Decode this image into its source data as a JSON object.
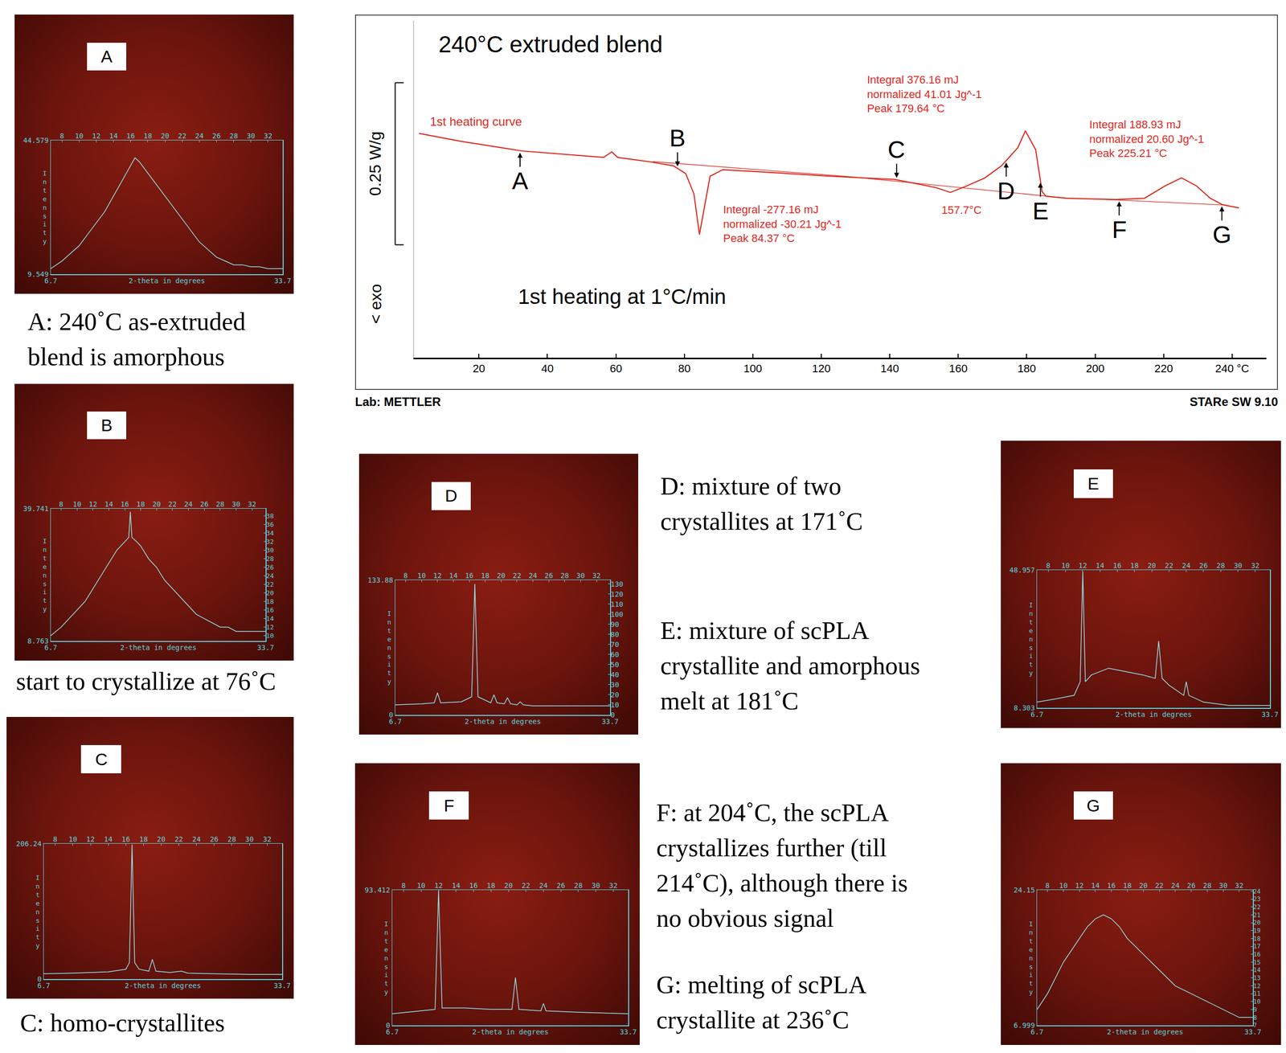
{
  "chart_data": [
    {
      "type": "line",
      "title": "240°C extruded blend",
      "subtitle": "1st heating at 1°C/min",
      "ylabel": "< exo",
      "series": [
        {
          "name": "1st heating curve",
          "color": "#e0291f",
          "x": [
            2.5,
            14.5,
            32.5,
            48,
            56.4,
            58.8,
            60.5,
            69.6,
            76.8,
            80.4,
            82.8,
            84.4,
            85.9,
            87.5,
            91.2,
            107.9,
            122.3,
            141.4,
            153.4,
            157.7,
            162.5,
            167.8,
            172.6,
            177.4,
            179.6,
            182.6,
            184.5,
            185.7,
            191.7,
            206,
            214.4,
            220.4,
            225.2,
            229.6,
            233.6,
            237.2,
            242
          ],
          "values": [
            0.346,
            0.334,
            0.319,
            0.3125,
            0.309,
            0.3175,
            0.309,
            0.3025,
            0.296,
            0.284,
            0.2525,
            0.19,
            0.234,
            0.28,
            0.29,
            0.285,
            0.28,
            0.275,
            0.2625,
            0.255,
            0.265,
            0.2775,
            0.296,
            0.324,
            0.35,
            0.321,
            0.256,
            0.249,
            0.246,
            0.244,
            0.246,
            0.265,
            0.2775,
            0.265,
            0.246,
            0.236,
            0.231
          ]
        },
        {
          "color": "#e0291f",
          "x": [
            70.8,
            128.8
          ],
          "values": [
            0.3025,
            0.279
          ]
        },
        {
          "color": "#e0291f",
          "x": [
            128.8,
            193
          ],
          "values": [
            0.279,
            0.2455
          ]
        },
        {
          "color": "#e0291f",
          "x": [
            201,
            238.4
          ],
          "values": [
            0.2445,
            0.2355
          ]
        }
      ],
      "xlim": [
        1,
        250
      ],
      "xticks": [
        20,
        40,
        60,
        80,
        100,
        120,
        140,
        160,
        180,
        200,
        220,
        {
          "value": 240,
          "label": "240 °C"
        }
      ],
      "ylim": [
        0,
        0.52
      ],
      "tick_labels": "x",
      "scale_bar": {
        "value": 0.25,
        "label": "0.25 W/g"
      },
      "annotations": [
        {
          "text": [
            "Integral -277.16 mJ",
            "normalized -30.21 Jg^-1",
            "Peak 84.37 °C"
          ],
          "x": 91,
          "y": 0.24
        },
        {
          "text": [
            "Integral 376.16 mJ",
            "normalized 41.01 Jg^-1",
            "Peak 179.64 °C"
          ],
          "x": 133,
          "y": 0.44
        },
        {
          "text": [
            "Integral 188.93 mJ",
            "normalized 20.60 Jg^-1",
            "Peak 225.21 °C"
          ],
          "x": 198,
          "y": 0.371
        },
        {
          "text": "157.7°C",
          "x": 161,
          "y": 0.2275
        },
        {
          "text": "A",
          "x": 32,
          "arrow": "up"
        },
        {
          "text": "B",
          "x": 78,
          "arrow": "down"
        },
        {
          "text": "C",
          "x": 142,
          "arrow": "down"
        },
        {
          "text": "D",
          "x": 174,
          "arrow": "up"
        },
        {
          "text": "E",
          "x": 184,
          "arrow": "up"
        },
        {
          "text": "F",
          "x": 207,
          "arrow": "up"
        },
        {
          "text": "G",
          "x": 237,
          "arrow": "up"
        }
      ]
    },
    {
      "type": "line",
      "title": "A",
      "color": "#8fe3ea",
      "xlabel": "2-theta in degrees",
      "ylabel": "Intensity",
      "x": [
        6.7,
        8,
        9,
        10,
        11,
        12,
        13,
        14,
        15,
        16,
        16.5,
        17,
        18,
        19,
        20,
        21,
        22,
        23,
        24,
        25,
        26,
        27,
        28,
        29,
        30,
        31,
        32,
        33.7
      ],
      "values": [
        11,
        13,
        15,
        17,
        20,
        23,
        26,
        30,
        34,
        38,
        40,
        39,
        36,
        33,
        30,
        27,
        24,
        21,
        18,
        16,
        14,
        13,
        12,
        12,
        11.5,
        11.5,
        11,
        11
      ],
      "xlim": [
        6.7,
        33.7
      ],
      "xticks": [
        6.7,
        33.7
      ],
      "x2lim": [
        6.7,
        33.7
      ],
      "x2ticks": [
        8,
        10,
        12,
        14,
        16,
        18,
        20,
        22,
        24,
        26,
        28,
        30,
        32
      ],
      "ylim": [
        9.549,
        44.579
      ],
      "yticks": [
        9.549,
        44.579
      ]
    },
    {
      "type": "line",
      "title": "B",
      "color": "#8fe3ea",
      "xlabel": "2-theta in degrees",
      "ylabel": "Intensity",
      "x": [
        6.7,
        8,
        9,
        10,
        11,
        12,
        13,
        14,
        15,
        16,
        16.5,
        16.7,
        16.9,
        17.5,
        18,
        19,
        20,
        21,
        22,
        23,
        24,
        25,
        26,
        27,
        28,
        29,
        30,
        31,
        32,
        33.7
      ],
      "values": [
        10,
        12,
        14,
        16,
        18,
        21,
        24,
        27,
        30,
        32,
        33,
        39,
        33,
        32,
        31,
        28,
        26,
        23,
        21,
        19,
        17,
        15,
        14,
        13,
        12,
        12,
        11,
        11,
        11,
        11
      ],
      "xlim": [
        6.7,
        33.7
      ],
      "xticks": [
        6.7,
        33.7
      ],
      "x2lim": [
        6.7,
        33.7
      ],
      "x2ticks": [
        8,
        10,
        12,
        14,
        16,
        18,
        20,
        22,
        24,
        26,
        28,
        30,
        32
      ],
      "ylim": [
        8.763,
        39.741
      ],
      "yticks": [
        8.763,
        39.741
      ],
      "y2lim": [
        8.763,
        39.741
      ],
      "y2ticks": [
        10,
        12,
        14,
        16,
        18,
        20,
        22,
        24,
        26,
        28,
        30,
        32,
        34,
        36,
        38
      ]
    },
    {
      "type": "line",
      "title": "C",
      "color": "#8fe3ea",
      "xlabel": "2-theta in degrees",
      "ylabel": "Intensity",
      "x": [
        6.7,
        10,
        14,
        16,
        16.4,
        16.7,
        17,
        17.5,
        18.6,
        19.0,
        19.4,
        21,
        22.3,
        23,
        26,
        30,
        33.7
      ],
      "values": [
        8,
        9,
        11,
        15,
        25,
        205,
        25,
        15,
        12,
        30,
        12,
        10,
        12,
        9,
        8,
        7,
        7
      ],
      "xlim": [
        6.7,
        33.7
      ],
      "xticks": [
        6.7,
        33.7
      ],
      "x2lim": [
        6.7,
        33.7
      ],
      "x2ticks": [
        8,
        10,
        12,
        14,
        16,
        18,
        20,
        22,
        24,
        26,
        28,
        30,
        32
      ],
      "ylim": [
        0,
        206.24
      ],
      "yticks": [
        0,
        206.24
      ]
    },
    {
      "type": "line",
      "title": "D",
      "color": "#8fe3ea",
      "xlabel": "2-theta in degrees",
      "ylabel": "Intensity",
      "x": [
        6.7,
        10,
        11.6,
        12.0,
        12.4,
        15,
        16.3,
        16.7,
        17.1,
        18.7,
        19.1,
        19.5,
        20.4,
        20.8,
        21.2,
        22.0,
        22.4,
        22.8,
        24,
        33.7
      ],
      "values": [
        10,
        11,
        12,
        22,
        12,
        13,
        18,
        130,
        18,
        12,
        20,
        12,
        11,
        17,
        11,
        10,
        13,
        10,
        9,
        9
      ],
      "xlim": [
        6.7,
        33.7
      ],
      "xticks": [
        6.7,
        33.7
      ],
      "x2lim": [
        6.7,
        33.7
      ],
      "x2ticks": [
        8,
        10,
        12,
        14,
        16,
        18,
        20,
        22,
        24,
        26,
        28,
        30,
        32
      ],
      "ylim": [
        0,
        133.88
      ],
      "yticks": [
        0,
        133.88
      ],
      "y2lim": [
        0,
        133.88
      ],
      "y2ticks": [
        0,
        10,
        20,
        30,
        40,
        50,
        60,
        70,
        80,
        90,
        100,
        110,
        120,
        130
      ]
    },
    {
      "type": "line",
      "title": "E",
      "color": "#8fe3ea",
      "xlabel": "2-theta in degrees",
      "ylabel": "Intensity",
      "x": [
        6.7,
        9,
        11,
        11.7,
        12.0,
        12.3,
        13,
        15,
        17,
        19,
        20.4,
        20.8,
        21.2,
        22,
        23.7,
        24.0,
        24.3,
        26,
        29,
        33.7
      ],
      "values": [
        10,
        11,
        12,
        16,
        48.5,
        16,
        18,
        20,
        19,
        18,
        17,
        28,
        17,
        15,
        12,
        16,
        12,
        10,
        9,
        9
      ],
      "xlim": [
        6.7,
        33.7
      ],
      "xticks": [
        6.7,
        33.7
      ],
      "x2lim": [
        6.7,
        33.7
      ],
      "x2ticks": [
        8,
        10,
        12,
        14,
        16,
        18,
        20,
        22,
        24,
        26,
        28,
        30,
        32
      ],
      "ylim": [
        8.303,
        48.957
      ],
      "yticks": [
        8.303,
        48.957
      ]
    },
    {
      "type": "line",
      "title": "F",
      "color": "#8fe3ea",
      "xlabel": "2-theta in degrees",
      "ylabel": "Intensity",
      "x": [
        6.7,
        10,
        11.6,
        12.0,
        12.4,
        15,
        18,
        20.4,
        20.8,
        21.2,
        23.7,
        24.0,
        24.3,
        28,
        33.7
      ],
      "values": [
        8,
        10,
        11,
        93,
        12,
        12,
        11,
        11,
        33,
        11,
        10,
        15,
        10,
        9,
        8
      ],
      "xlim": [
        6.7,
        33.7
      ],
      "xticks": [
        6.7,
        33.7
      ],
      "x2lim": [
        6.7,
        33.7
      ],
      "x2ticks": [
        8,
        10,
        12,
        14,
        16,
        18,
        20,
        22,
        24,
        26,
        28,
        30,
        32
      ],
      "ylim": [
        0,
        93.412
      ],
      "yticks": [
        0,
        93.412
      ]
    },
    {
      "type": "line",
      "title": "G",
      "color": "#8fe3ea",
      "xlabel": "2-theta in degrees",
      "ylabel": "Intensity",
      "x": [
        6.7,
        8,
        9,
        10,
        11,
        12,
        13,
        14,
        15,
        16,
        17,
        18,
        19,
        20,
        21,
        22,
        23,
        24,
        25,
        26,
        27,
        28,
        29,
        30,
        31,
        32,
        33.7
      ],
      "values": [
        9,
        11,
        13,
        15,
        16.5,
        18,
        19.5,
        20.5,
        21,
        20.5,
        19.5,
        18,
        17,
        16,
        15,
        14,
        13,
        12,
        11.5,
        11,
        10.5,
        10,
        9.5,
        9,
        8.5,
        8,
        8
      ],
      "xlim": [
        6.7,
        33.7
      ],
      "xticks": [
        6.7,
        33.7
      ],
      "x2lim": [
        6.7,
        33.7
      ],
      "x2ticks": [
        8,
        10,
        12,
        14,
        16,
        18,
        20,
        22,
        24,
        26,
        28,
        30,
        32
      ],
      "ylim": [
        6.999,
        24.15
      ],
      "yticks": [
        6.999,
        24.15
      ],
      "y2lim": [
        6.999,
        24.15
      ],
      "y2ticks": [
        7,
        8,
        9,
        10,
        11,
        12,
        13,
        14,
        15,
        16,
        17,
        18,
        19,
        20,
        21,
        22,
        23,
        24
      ]
    }
  ],
  "captions": [
    [
      "A: 240˚C as-extruded",
      "blend is amorphous"
    ],
    [
      "start to crystallize at 76˚C"
    ],
    [
      "C: homo-crystallites"
    ],
    [
      "D: mixture of two",
      "crystallites at 171˚C"
    ],
    [
      "E: mixture of scPLA",
      "crystallite and amorphous",
      "melt at 181˚C"
    ],
    [
      "F: at 204˚C, the scPLA",
      "crystallizes further (till",
      "214˚C), although there is",
      "no obvious signal"
    ],
    [
      "G: melting of scPLA",
      "crystallite at 236˚C"
    ]
  ],
  "footer": {
    "left": "Lab: METTLER",
    "right": "STARe SW 9.10"
  }
}
